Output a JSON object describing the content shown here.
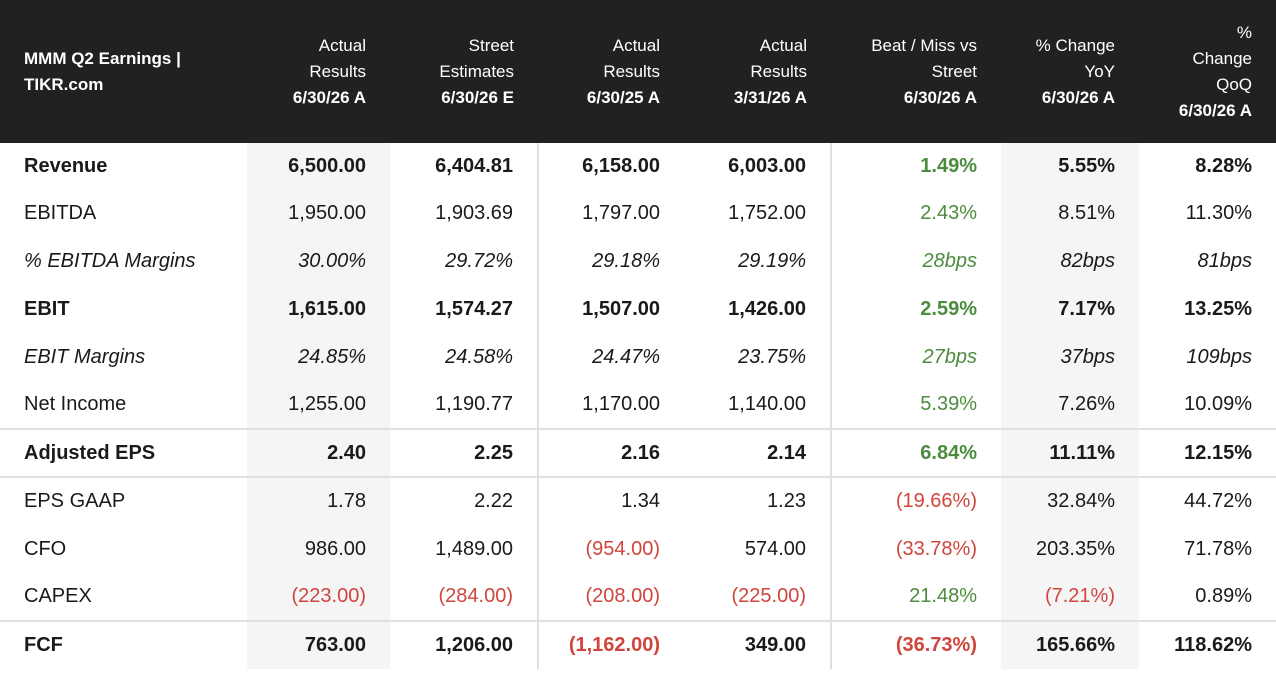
{
  "header": {
    "title": "MMM Q2 Earnings | TIKR.com",
    "columns": [
      {
        "lines": [
          "Actual",
          "Results"
        ],
        "date": "6/30/26 A"
      },
      {
        "lines": [
          "Street",
          "Estimates"
        ],
        "date": "6/30/26 E"
      },
      {
        "lines": [
          "Actual",
          "Results"
        ],
        "date": "6/30/25 A"
      },
      {
        "lines": [
          "Actual",
          "Results"
        ],
        "date": "3/31/26 A"
      },
      {
        "lines": [
          "Beat / Miss vs",
          "Street"
        ],
        "date": "6/30/26 A"
      },
      {
        "lines": [
          "% Change",
          "YoY"
        ],
        "date": "6/30/26 A"
      },
      {
        "lines": [
          "%",
          "Change",
          "QoQ"
        ],
        "date": "6/30/26 A"
      }
    ]
  },
  "rows": [
    {
      "label": "Revenue",
      "values": [
        "6,500.00",
        "6,404.81",
        "6,158.00",
        "6,003.00",
        "1.49%",
        "5.55%",
        "8.28%"
      ]
    },
    {
      "label": "EBITDA",
      "values": [
        "1,950.00",
        "1,903.69",
        "1,797.00",
        "1,752.00",
        "2.43%",
        "8.51%",
        "11.30%"
      ]
    },
    {
      "label": "% EBITDA Margins",
      "values": [
        "30.00%",
        "29.72%",
        "29.18%",
        "29.19%",
        "28bps",
        "82bps",
        "81bps"
      ]
    },
    {
      "label": "EBIT",
      "values": [
        "1,615.00",
        "1,574.27",
        "1,507.00",
        "1,426.00",
        "2.59%",
        "7.17%",
        "13.25%"
      ]
    },
    {
      "label": "EBIT Margins",
      "values": [
        "24.85%",
        "24.58%",
        "24.47%",
        "23.75%",
        "27bps",
        "37bps",
        "109bps"
      ]
    },
    {
      "label": "Net Income",
      "values": [
        "1,255.00",
        "1,190.77",
        "1,170.00",
        "1,140.00",
        "5.39%",
        "7.26%",
        "10.09%"
      ]
    },
    {
      "label": "Adjusted EPS",
      "values": [
        "2.40",
        "2.25",
        "2.16",
        "2.14",
        "6.84%",
        "11.11%",
        "12.15%"
      ]
    },
    {
      "label": "EPS GAAP",
      "values": [
        "1.78",
        "2.22",
        "1.34",
        "1.23",
        "(19.66%)",
        "32.84%",
        "44.72%"
      ]
    },
    {
      "label": "CFO",
      "values": [
        "986.00",
        "1,489.00",
        "(954.00)",
        "574.00",
        "(33.78%)",
        "203.35%",
        "71.78%"
      ]
    },
    {
      "label": "CAPEX",
      "values": [
        "(223.00)",
        "(284.00)",
        "(208.00)",
        "(225.00)",
        "21.48%",
        "(7.21%)",
        "0.89%"
      ]
    },
    {
      "label": "FCF",
      "values": [
        "763.00",
        "1,206.00",
        "(1,162.00)",
        "349.00",
        "(36.73%)",
        "165.66%",
        "118.62%"
      ]
    }
  ],
  "colors": {
    "positive": "#4c8c3e",
    "negative": "#d0453d",
    "header_bg": "#212121"
  }
}
